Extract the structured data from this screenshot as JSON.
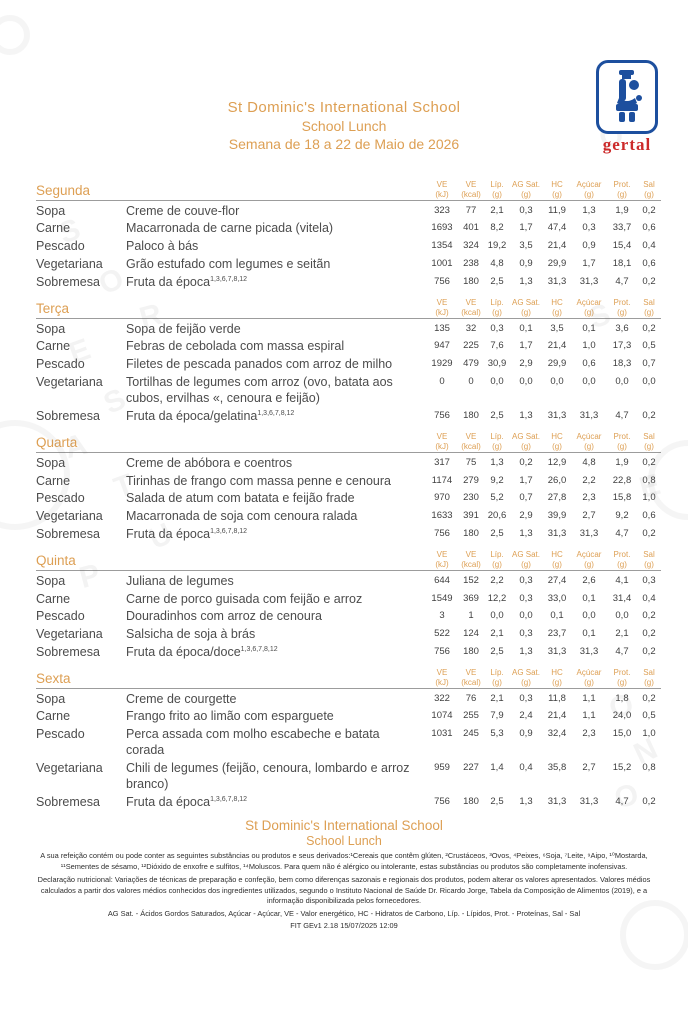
{
  "header": {
    "school": "St Dominic's International School",
    "subtitle": "School Lunch",
    "week": "Semana de 18 a 22 de Maio de 2026"
  },
  "logo": {
    "text": "gertal",
    "blue": "#1d4f9e",
    "red": "#cc2a2a"
  },
  "colors": {
    "accent": "#dd9f53",
    "body_text": "#4c4c4c",
    "rule": "#9c9c9c"
  },
  "columns": [
    {
      "label": "VE",
      "unit": "(kJ)"
    },
    {
      "label": "VE",
      "unit": "(kcal)"
    },
    {
      "label": "Líp.",
      "unit": "(g)"
    },
    {
      "label": "AG Sat.",
      "unit": "(g)"
    },
    {
      "label": "HC",
      "unit": "(g)"
    },
    {
      "label": "Açúcar",
      "unit": "(g)"
    },
    {
      "label": "Prot.",
      "unit": "(g)"
    },
    {
      "label": "Sal",
      "unit": "(g)"
    }
  ],
  "days": [
    {
      "name": "Segunda",
      "rows": [
        {
          "category": "Sopa",
          "dish": "Creme de couve-flor",
          "allergens": "",
          "values": [
            "323",
            "77",
            "2,1",
            "0,3",
            "11,9",
            "1,3",
            "1,9",
            "0,2"
          ]
        },
        {
          "category": "Carne",
          "dish": "Macarronada de carne picada (vitela)",
          "allergens": "",
          "values": [
            "1693",
            "401",
            "8,2",
            "1,7",
            "47,4",
            "0,3",
            "33,7",
            "0,6"
          ]
        },
        {
          "category": "Pescado",
          "dish": "Paloco à bás",
          "allergens": "",
          "values": [
            "1354",
            "324",
            "19,2",
            "3,5",
            "21,4",
            "0,9",
            "15,4",
            "0,4"
          ]
        },
        {
          "category": "Vegetariana",
          "dish": "Grão estufado com legumes e seitãn",
          "allergens": "",
          "values": [
            "1001",
            "238",
            "4,8",
            "0,9",
            "29,9",
            "1,7",
            "18,1",
            "0,6"
          ]
        },
        {
          "category": "Sobremesa",
          "dish": "Fruta da época",
          "allergens": "1,3,6,7,8,12",
          "values": [
            "756",
            "180",
            "2,5",
            "1,3",
            "31,3",
            "31,3",
            "4,7",
            "0,2"
          ]
        }
      ]
    },
    {
      "name": "Terça",
      "rows": [
        {
          "category": "Sopa",
          "dish": "Sopa de feijão verde",
          "allergens": "",
          "values": [
            "135",
            "32",
            "0,3",
            "0,1",
            "3,5",
            "0,1",
            "3,6",
            "0,2"
          ]
        },
        {
          "category": "Carne",
          "dish": "Febras de cebolada com massa espiral",
          "allergens": "",
          "values": [
            "947",
            "225",
            "7,6",
            "1,7",
            "21,4",
            "1,0",
            "17,3",
            "0,5"
          ]
        },
        {
          "category": "Pescado",
          "dish": "Filetes de pescada panados com arroz de milho",
          "allergens": "",
          "values": [
            "1929",
            "479",
            "30,9",
            "2,9",
            "29,9",
            "0,6",
            "18,3",
            "0,7"
          ]
        },
        {
          "category": "Vegetariana",
          "dish": "Tortilhas de legumes com arroz (ovo, batata aos cubos, ervilhas «, cenoura e feijão)",
          "allergens": "",
          "values": [
            "0",
            "0",
            "0,0",
            "0,0",
            "0,0",
            "0,0",
            "0,0",
            "0,0"
          ]
        },
        {
          "category": "Sobremesa",
          "dish": "Fruta da época/gelatina",
          "allergens": "1,3,6,7,8,12",
          "values": [
            "756",
            "180",
            "2,5",
            "1,3",
            "31,3",
            "31,3",
            "4,7",
            "0,2"
          ]
        }
      ]
    },
    {
      "name": "Quarta",
      "rows": [
        {
          "category": "Sopa",
          "dish": "Creme de abóbora e coentros",
          "allergens": "",
          "values": [
            "317",
            "75",
            "1,3",
            "0,2",
            "12,9",
            "4,8",
            "1,9",
            "0,2"
          ]
        },
        {
          "category": "Carne",
          "dish": "Tirinhas de frango com massa penne e cenoura",
          "allergens": "",
          "values": [
            "1174",
            "279",
            "9,2",
            "1,7",
            "26,0",
            "2,2",
            "22,8",
            "0,8"
          ]
        },
        {
          "category": "Pescado",
          "dish": "Salada de atum com batata e feijão frade",
          "allergens": "",
          "values": [
            "970",
            "230",
            "5,2",
            "0,7",
            "27,8",
            "2,3",
            "15,8",
            "1,0"
          ]
        },
        {
          "category": "Vegetariana",
          "dish": "Macarronada de soja com cenoura ralada",
          "allergens": "",
          "values": [
            "1633",
            "391",
            "20,6",
            "2,9",
            "39,9",
            "2,7",
            "9,2",
            "0,6"
          ]
        },
        {
          "category": "Sobremesa",
          "dish": "Fruta da época",
          "allergens": "1,3,6,7,8,12",
          "values": [
            "756",
            "180",
            "2,5",
            "1,3",
            "31,3",
            "31,3",
            "4,7",
            "0,2"
          ]
        }
      ]
    },
    {
      "name": "Quinta",
      "rows": [
        {
          "category": "Sopa",
          "dish": "Juliana de legumes",
          "allergens": "",
          "values": [
            "644",
            "152",
            "2,2",
            "0,3",
            "27,4",
            "2,6",
            "4,1",
            "0,3"
          ]
        },
        {
          "category": "Carne",
          "dish": "Carne de porco guisada com feijão e arroz",
          "allergens": "",
          "values": [
            "1549",
            "369",
            "12,2",
            "0,3",
            "33,0",
            "0,1",
            "31,4",
            "0,4"
          ]
        },
        {
          "category": "Pescado",
          "dish": "Douradinhos com arroz de cenoura",
          "allergens": "",
          "values": [
            "3",
            "1",
            "0,0",
            "0,0",
            "0,1",
            "0,0",
            "0,0",
            "0,2"
          ]
        },
        {
          "category": "Vegetariana",
          "dish": "Salsicha de soja à brás",
          "allergens": "",
          "values": [
            "522",
            "124",
            "2,1",
            "0,3",
            "23,7",
            "0,1",
            "2,1",
            "0,2"
          ]
        },
        {
          "category": "Sobremesa",
          "dish": "Fruta da época/doce",
          "allergens": "1,3,6,7,8,12",
          "values": [
            "756",
            "180",
            "2,5",
            "1,3",
            "31,3",
            "31,3",
            "4,7",
            "0,2"
          ]
        }
      ]
    },
    {
      "name": "Sexta",
      "rows": [
        {
          "category": "Sopa",
          "dish": "Creme de courgette",
          "allergens": "",
          "values": [
            "322",
            "76",
            "2,1",
            "0,3",
            "11,8",
            "1,1",
            "1,8",
            "0,2"
          ]
        },
        {
          "category": "Carne",
          "dish": "Frango frito ao limão com esparguete",
          "allergens": "",
          "values": [
            "1074",
            "255",
            "7,9",
            "2,4",
            "21,4",
            "1,1",
            "24,0",
            "0,5"
          ]
        },
        {
          "category": "Pescado",
          "dish": "Perca assada com molho escabeche e batata corada",
          "allergens": "",
          "values": [
            "1031",
            "245",
            "5,3",
            "0,9",
            "32,4",
            "2,3",
            "15,0",
            "1,0"
          ]
        },
        {
          "category": "Vegetariana",
          "dish": "Chili de legumes (feijão, cenoura, lombardo e arroz branco)",
          "allergens": "",
          "values": [
            "959",
            "227",
            "1,4",
            "0,4",
            "35,8",
            "2,7",
            "15,2",
            "0,8"
          ]
        },
        {
          "category": "Sobremesa",
          "dish": "Fruta da época",
          "allergens": "1,3,6,7,8,12",
          "values": [
            "756",
            "180",
            "2,5",
            "1,3",
            "31,3",
            "31,3",
            "4,7",
            "0,2"
          ]
        }
      ]
    }
  ],
  "footer": {
    "school": "St Dominic's International School",
    "subtitle": "School Lunch",
    "allergen_note": "A sua refeição contém ou pode conter as seguintes substâncias ou produtos e seus derivados:¹Cereais que contêm glúten, ²Crustáceos, ³Ovos, ⁴Peixes, ⁶Soja, ⁷Leite, ⁹Aipo, ¹⁰Mostarda, ¹¹Sementes de sésamo, ¹²Dióxido de enxofre e sulfitos, ¹⁴Moluscos. Para quem não é alérgico ou intolerante, estas substâncias ou produtos são completamente inofensivas.",
    "declaration_part1": "Declaração nutricional: Variações de técnicas de preparação e confeção, bem como diferenças sazonais e regionais dos produtos, podem alterar os valores apresentados. Valores médios calculados a partir dos valores médios conhecidos dos ingredientes utilizados, segundo o Instituto Nacional de Saúde Dr. Ricardo Jorge, Tabela da Composição de Alimentos (2019), e a informação ",
    "declaration_highlight": "disponibilizada pelos fornecedores.",
    "abbreviations": "AG Sat. - Ácidos Gordos Saturados, Açúcar - Açúcar, VE - Valor energético, HC - Hidratos de Carbono, Líp. - Lípidos, Prot. - Proteínas, Sal - Sal",
    "version_line": "FIT GEv1 2.18 15/07/2025 12:09"
  },
  "watermark_letters": [
    "S",
    "O",
    "R",
    "E",
    "S",
    "A",
    "T",
    "U",
    "P",
    "O",
    "N",
    "O",
    "S",
    "E",
    "O"
  ]
}
